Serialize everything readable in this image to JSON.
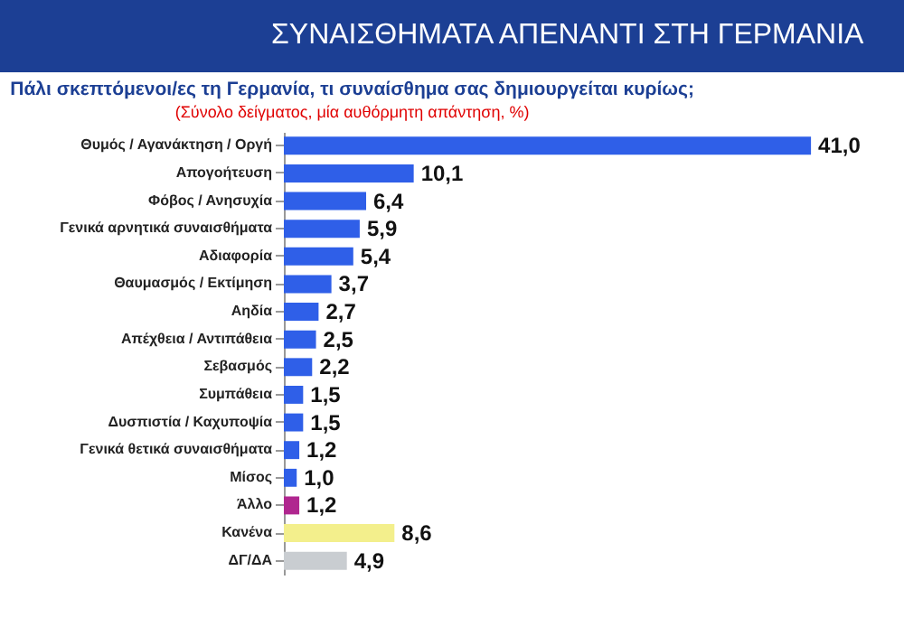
{
  "chart_data": {
    "type": "bar",
    "orientation": "horizontal",
    "title": "ΣΥΝΑΙΣΘΗΜΑΤΑ ΑΠΕΝΑΝΤΙ ΣΤΗ ΓΕΡΜΑΝΙΑ",
    "subtitle": "Πάλι σκεπτόμενοι/ες τη Γερμανία, τι συναίσθημα σας δημιουργείται κυρίως;",
    "annotations": [
      "(Σύνολο δείγματος, μία αυθόρμητη απάντηση, %)"
    ],
    "categories": [
      "Θυμός / Αγανάκτηση / Οργή",
      "Απογοήτευση",
      "Φόβος / Ανησυχία",
      "Γενικά αρνητικά συναισθήματα",
      "Αδιαφορία",
      "Θαυμασμός / Εκτίμηση",
      "Αηδία",
      "Απέχθεια / Αντιπάθεια",
      "Σεβασμός",
      "Συμπάθεια",
      "Δυσπιστία / Καχυποψία",
      "Γενικά θετικά συναισθήματα",
      "Μίσος",
      "Άλλο",
      "Κανένα",
      "ΔΓ/ΔΑ"
    ],
    "values": [
      41.0,
      10.1,
      6.4,
      5.9,
      5.4,
      3.7,
      2.7,
      2.5,
      2.2,
      1.5,
      1.5,
      1.2,
      1.0,
      1.2,
      8.6,
      4.9
    ],
    "value_labels": [
      "41,0",
      "10,1",
      "6,4",
      "5,9",
      "5,4",
      "3,7",
      "2,7",
      "2,5",
      "2,2",
      "1,5",
      "1,5",
      "1,2",
      "1,0",
      "1,2",
      "8,6",
      "4,9"
    ],
    "colors": [
      "#2f5fe8",
      "#2f5fe8",
      "#2f5fe8",
      "#2f5fe8",
      "#2f5fe8",
      "#2f5fe8",
      "#2f5fe8",
      "#2f5fe8",
      "#2f5fe8",
      "#2f5fe8",
      "#2f5fe8",
      "#2f5fe8",
      "#2f5fe8",
      "#b0268f",
      "#f3ef8c",
      "#c9cdd1"
    ],
    "tick_labels": "y"
  }
}
